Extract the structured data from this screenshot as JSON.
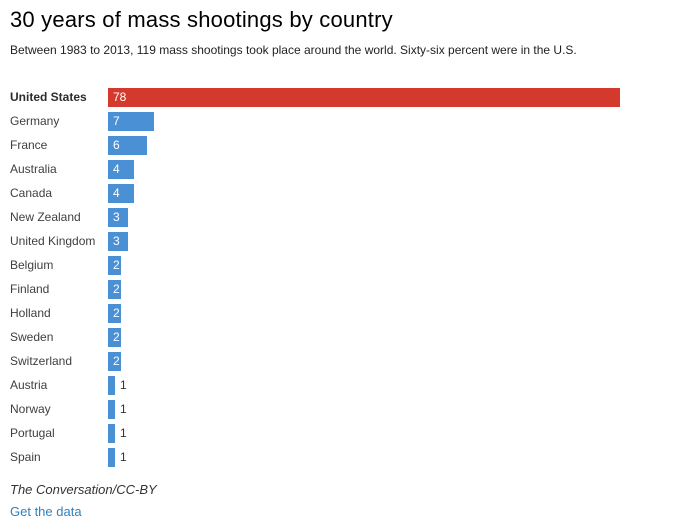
{
  "chart_data": {
    "type": "bar",
    "orientation": "horizontal",
    "title": "30 years of mass shootings by country",
    "subtitle": "Between 1983 to 2013, 119 mass shootings took place around the world. Sixty-six percent were in the U.S.",
    "categories": [
      "United States",
      "Germany",
      "France",
      "Australia",
      "Canada",
      "New Zealand",
      "United Kingdom",
      "Belgium",
      "Finland",
      "Holland",
      "Sweden",
      "Switzerland",
      "Austria",
      "Norway",
      "Portugal",
      "Spain"
    ],
    "values": [
      78,
      7,
      6,
      4,
      4,
      3,
      3,
      2,
      2,
      2,
      2,
      2,
      1,
      1,
      1,
      1
    ],
    "xlim": [
      0,
      78
    ],
    "grid": false,
    "legend": false,
    "value_labels": true,
    "highlight_category": "United States",
    "colors": {
      "highlight_bar": "#d3392c",
      "bar": "#4a90d4",
      "value_inside": "#ffffff",
      "value_outside": "#333333"
    }
  },
  "footer": {
    "credit": "The Conversation/CC-BY",
    "link_label": "Get the data",
    "link_color": "#3181bd"
  }
}
